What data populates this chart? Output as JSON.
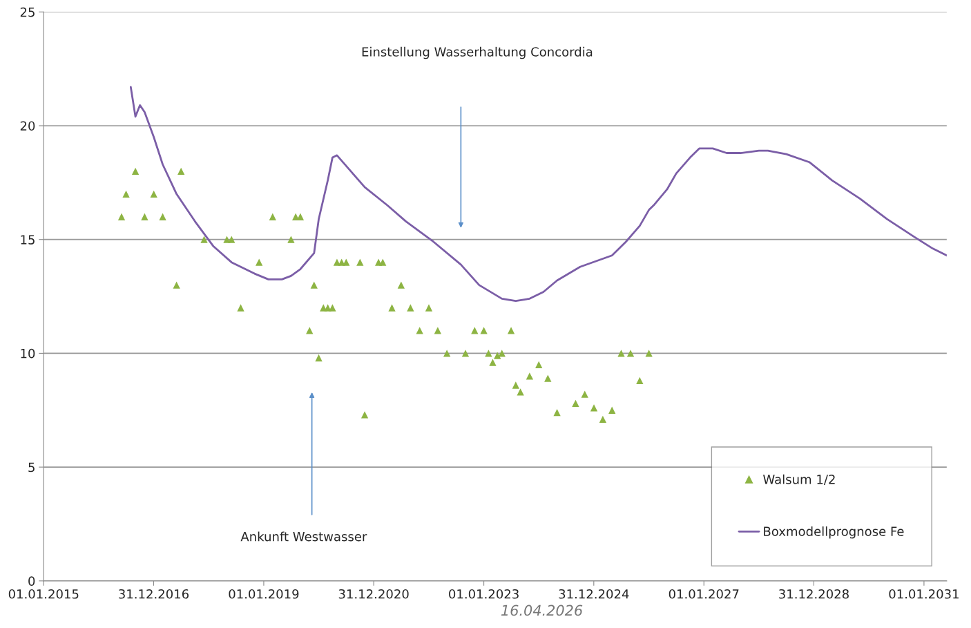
{
  "chart_data": {
    "type": "scatter",
    "xlim": [
      "2015-01-01",
      "2031-06-01"
    ],
    "xticks": [
      {
        "value": "2015-01-01",
        "label": "01.01.2015"
      },
      {
        "value": "2016-12-31",
        "label": "31.12.2016"
      },
      {
        "value": "2019-01-01",
        "label": "01.01.2019"
      },
      {
        "value": "2020-12-31",
        "label": "31.12.2020"
      },
      {
        "value": "2023-01-01",
        "label": "01.01.2023"
      },
      {
        "value": "2024-12-31",
        "label": "31.12.2024"
      },
      {
        "value": "2027-01-01",
        "label": "01.01.2027"
      },
      {
        "value": "2028-12-31",
        "label": "31.12.2028"
      },
      {
        "value": "2031-01-01",
        "label": "01.01.2031"
      }
    ],
    "ylim": [
      0,
      25
    ],
    "yticks": [
      0,
      5,
      10,
      15,
      20,
      25
    ],
    "grid": "y",
    "legend": "bottom right",
    "series": [
      {
        "name": "Walsum 1/2",
        "marker": "triangle",
        "color": "#8db443",
        "x": [
          "2016-06",
          "2016-07",
          "2016-09",
          "2016-11",
          "2017-01",
          "2017-03",
          "2017-06",
          "2017-07",
          "2017-12",
          "2018-05",
          "2018-06",
          "2018-08",
          "2018-12",
          "2019-03",
          "2019-07",
          "2019-08",
          "2019-09",
          "2019-11",
          "2019-12",
          "2020-01",
          "2020-02",
          "2020-03",
          "2020-04",
          "2020-05",
          "2020-06",
          "2020-07",
          "2020-10",
          "2020-11",
          "2021-02",
          "2021-03",
          "2021-05",
          "2021-07",
          "2021-09",
          "2021-11",
          "2022-01",
          "2022-03",
          "2022-05",
          "2022-09",
          "2022-11",
          "2023-01",
          "2023-02",
          "2023-03",
          "2023-04",
          "2023-05",
          "2023-07",
          "2023-08",
          "2023-09",
          "2023-11",
          "2024-01",
          "2024-03",
          "2024-05",
          "2024-09",
          "2024-11",
          "2025-01",
          "2025-03",
          "2025-05",
          "2025-07",
          "2025-09",
          "2025-11",
          "2026-01"
        ],
        "values": [
          16,
          17,
          18,
          16,
          17,
          16,
          13,
          18,
          15,
          15,
          15,
          12,
          14,
          16,
          15,
          16,
          16,
          11,
          13,
          9.8,
          12,
          12,
          12,
          14,
          14,
          14,
          14,
          7.3,
          14,
          14,
          12,
          13,
          12,
          11,
          12,
          11,
          10,
          10,
          11,
          11,
          10,
          9.6,
          9.9,
          10,
          11,
          8.6,
          8.3,
          9.0,
          9.5,
          8.9,
          7.4,
          7.8,
          8.2,
          7.6,
          7.1,
          7.5,
          10,
          10,
          8.8,
          10
        ]
      },
      {
        "name": "Boxmodellprognose Fe",
        "type": "line",
        "marker": "none",
        "line_style": "solid",
        "color": "#7b5ea7",
        "x": [
          "2016-08",
          "2016-09",
          "2016-10",
          "2016-11",
          "2017-01",
          "2017-03",
          "2017-06",
          "2017-10",
          "2018-02",
          "2018-06",
          "2018-11",
          "2019-02",
          "2019-05",
          "2019-07",
          "2019-09",
          "2019-12",
          "2020-01",
          "2020-03",
          "2020-04",
          "2020-05",
          "2020-08",
          "2020-11",
          "2021-04",
          "2021-08",
          "2022-02",
          "2022-08",
          "2022-12",
          "2023-05",
          "2023-08",
          "2023-11",
          "2024-02",
          "2024-05",
          "2024-10",
          "2025-05",
          "2025-08",
          "2025-11",
          "2026-01",
          "2026-02",
          "2026-05",
          "2026-07",
          "2026-10",
          "2026-12",
          "2027-03",
          "2027-06",
          "2027-09",
          "2028-01",
          "2028-03",
          "2028-07",
          "2028-12",
          "2029-05",
          "2029-11",
          "2030-05",
          "2030-11",
          "2031-03",
          "2031-06"
        ],
        "values": [
          21.7,
          20.4,
          20.9,
          20.6,
          19.5,
          18.3,
          17.0,
          15.8,
          14.7,
          14.0,
          13.5,
          13.25,
          13.25,
          13.4,
          13.7,
          14.4,
          15.9,
          17.6,
          18.6,
          18.7,
          18.0,
          17.3,
          16.5,
          15.8,
          14.9,
          13.9,
          13.0,
          12.4,
          12.3,
          12.4,
          12.7,
          13.2,
          13.8,
          14.3,
          14.9,
          15.6,
          16.3,
          16.5,
          17.2,
          17.9,
          18.6,
          19.0,
          19.0,
          18.8,
          18.8,
          18.9,
          18.9,
          18.75,
          18.4,
          17.6,
          16.8,
          15.9,
          15.1,
          14.6,
          14.3
        ]
      }
    ],
    "annotations": [
      "Einstellung Wasserhaltung Concordia",
      "Ankunft Westwasser",
      "16.04.2026"
    ]
  }
}
